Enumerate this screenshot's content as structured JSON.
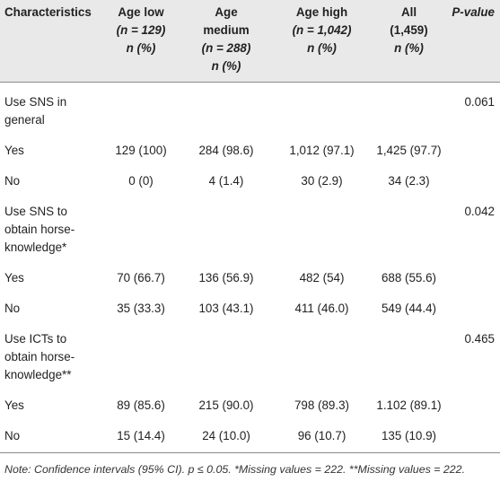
{
  "table": {
    "headers": [
      {
        "l1": "Characteristics",
        "l2": "",
        "l3": "",
        "l4": ""
      },
      {
        "l1": "Age low",
        "l2": "(n = 129)",
        "l3": "n (%)",
        "l4": ""
      },
      {
        "l1": "Age",
        "l2": "medium",
        "l3": "(n = 288)",
        "l4": "n (%)"
      },
      {
        "l1": "Age high",
        "l2": "(n = 1,042)",
        "l3": "n (%)",
        "l4": ""
      },
      {
        "l1": "All",
        "l2": "(1,459)",
        "l3": "n (%)",
        "l4": ""
      },
      {
        "l1": "P-value",
        "l2": "",
        "l3": "",
        "l4": ""
      }
    ],
    "rows": [
      {
        "c0": "Use SNS in general",
        "c1": "",
        "c2": "",
        "c3": "",
        "c4": "",
        "c5": "0.061"
      },
      {
        "c0": "Yes",
        "c1": "129 (100)",
        "c2": "284 (98.6)",
        "c3": "1,012 (97.1)",
        "c4": "1,425 (97.7)",
        "c5": ""
      },
      {
        "c0": "No",
        "c1": "0 (0)",
        "c2": "4 (1.4)",
        "c3": "30 (2.9)",
        "c4": "34 (2.3)",
        "c5": ""
      },
      {
        "c0": "Use SNS to obtain horse-knowledge*",
        "c1": "",
        "c2": "",
        "c3": "",
        "c4": "",
        "c5": "0.042"
      },
      {
        "c0": "Yes",
        "c1": "70 (66.7)",
        "c2": "136 (56.9)",
        "c3": "482 (54)",
        "c4": "688 (55.6)",
        "c5": ""
      },
      {
        "c0": "No",
        "c1": "35 (33.3)",
        "c2": "103 (43.1)",
        "c3": "411 (46.0)",
        "c4": "549 (44.4)",
        "c5": ""
      },
      {
        "c0": "Use ICTs to obtain horse-knowledge**",
        "c1": "",
        "c2": "",
        "c3": "",
        "c4": "",
        "c5": "0.465"
      },
      {
        "c0": "Yes",
        "c1": "89 (85.6)",
        "c2": "215 (90.0)",
        "c3": "798 (89.3)",
        "c4": "1.102 (89.1)",
        "c5": ""
      },
      {
        "c0": "No",
        "c1": "15 (14.4)",
        "c2": "24 (10.0)",
        "c3": "96 (10.7)",
        "c4": "135 (10.9)",
        "c5": ""
      }
    ]
  },
  "note": "Note: Confidence intervals (95% CI). p ≤ 0.05. *Missing values = 222. **Missing values = 222."
}
